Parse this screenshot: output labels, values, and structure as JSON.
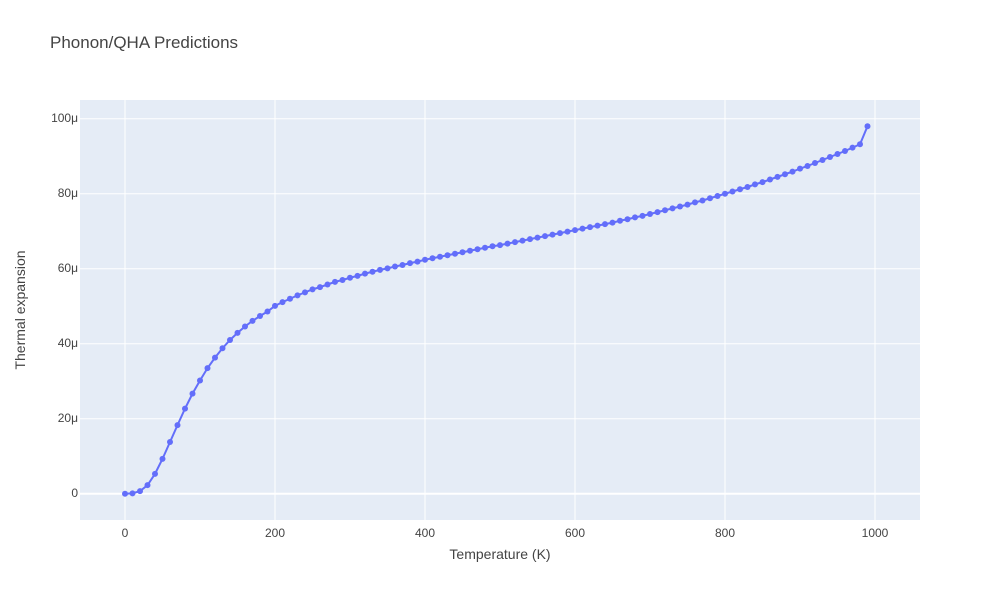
{
  "chart_data": {
    "type": "line",
    "title": "Phonon/QHA Predictions",
    "xlabel": "Temperature (K)",
    "ylabel": "Thermal expansion",
    "xlim": [
      -60,
      1060
    ],
    "ylim": [
      -7e-06,
      0.000105
    ],
    "x_ticks": [
      0,
      200,
      400,
      600,
      800,
      1000
    ],
    "x_tick_labels": [
      "0",
      "200",
      "400",
      "600",
      "800",
      "1000"
    ],
    "y_ticks": [
      0,
      2e-05,
      4e-05,
      6e-05,
      8e-05,
      0.0001
    ],
    "y_tick_labels": [
      "0",
      "20μ",
      "40μ",
      "60μ",
      "80μ",
      "100μ"
    ],
    "grid": true,
    "colors": {
      "series": "#636efa",
      "plot_background": "#e5ecf6",
      "grid": "#ffffff"
    },
    "series": [
      {
        "x": [
          0,
          10,
          20,
          30,
          40,
          50,
          60,
          70,
          80,
          90,
          100,
          110,
          120,
          130,
          140,
          150,
          160,
          170,
          180,
          190,
          200,
          210,
          220,
          230,
          240,
          250,
          260,
          270,
          280,
          290,
          300,
          310,
          320,
          330,
          340,
          350,
          360,
          370,
          380,
          390,
          400,
          410,
          420,
          430,
          440,
          450,
          460,
          470,
          480,
          490,
          500,
          510,
          520,
          530,
          540,
          550,
          560,
          570,
          580,
          590,
          600,
          610,
          620,
          630,
          640,
          650,
          660,
          670,
          680,
          690,
          700,
          710,
          720,
          730,
          740,
          750,
          760,
          770,
          780,
          790,
          800,
          810,
          820,
          830,
          840,
          850,
          860,
          870,
          880,
          890,
          900,
          910,
          920,
          930,
          940,
          950,
          960,
          970,
          980,
          990
        ],
        "y": [
          0,
          1e-07,
          7e-07,
          2.3e-06,
          5.3e-06,
          9.3e-06,
          1.38e-05,
          1.83e-05,
          2.27e-05,
          2.67e-05,
          3.02e-05,
          3.35e-05,
          3.63e-05,
          3.88e-05,
          4.1e-05,
          4.29e-05,
          4.46e-05,
          4.61e-05,
          4.74e-05,
          4.86e-05,
          5.01e-05,
          5.11e-05,
          5.2e-05,
          5.29e-05,
          5.37e-05,
          5.45e-05,
          5.51e-05,
          5.58e-05,
          5.65e-05,
          5.7e-05,
          5.76e-05,
          5.81e-05,
          5.87e-05,
          5.92e-05,
          5.97e-05,
          6.01e-05,
          6.06e-05,
          6.1e-05,
          6.15e-05,
          6.19e-05,
          6.24e-05,
          6.28e-05,
          6.32e-05,
          6.36e-05,
          6.4e-05,
          6.44e-05,
          6.48e-05,
          6.52e-05,
          6.56e-05,
          6.6e-05,
          6.63e-05,
          6.67e-05,
          6.71e-05,
          6.75e-05,
          6.79e-05,
          6.83e-05,
          6.87e-05,
          6.91e-05,
          6.95e-05,
          6.99e-05,
          7.03e-05,
          7.07e-05,
          7.11e-05,
          7.15e-05,
          7.19e-05,
          7.23e-05,
          7.28e-05,
          7.32e-05,
          7.37e-05,
          7.41e-05,
          7.46e-05,
          7.51e-05,
          7.56e-05,
          7.61e-05,
          7.66e-05,
          7.71e-05,
          7.77e-05,
          7.82e-05,
          7.88e-05,
          7.94e-05,
          8e-05,
          8.06e-05,
          8.12e-05,
          8.18e-05,
          8.25e-05,
          8.31e-05,
          8.38e-05,
          8.45e-05,
          8.52e-05,
          8.59e-05,
          8.67e-05,
          8.74e-05,
          8.82e-05,
          8.9e-05,
          8.98e-05,
          9.06e-05,
          9.14e-05,
          9.23e-05,
          9.32e-05,
          9.8e-05
        ]
      }
    ]
  }
}
